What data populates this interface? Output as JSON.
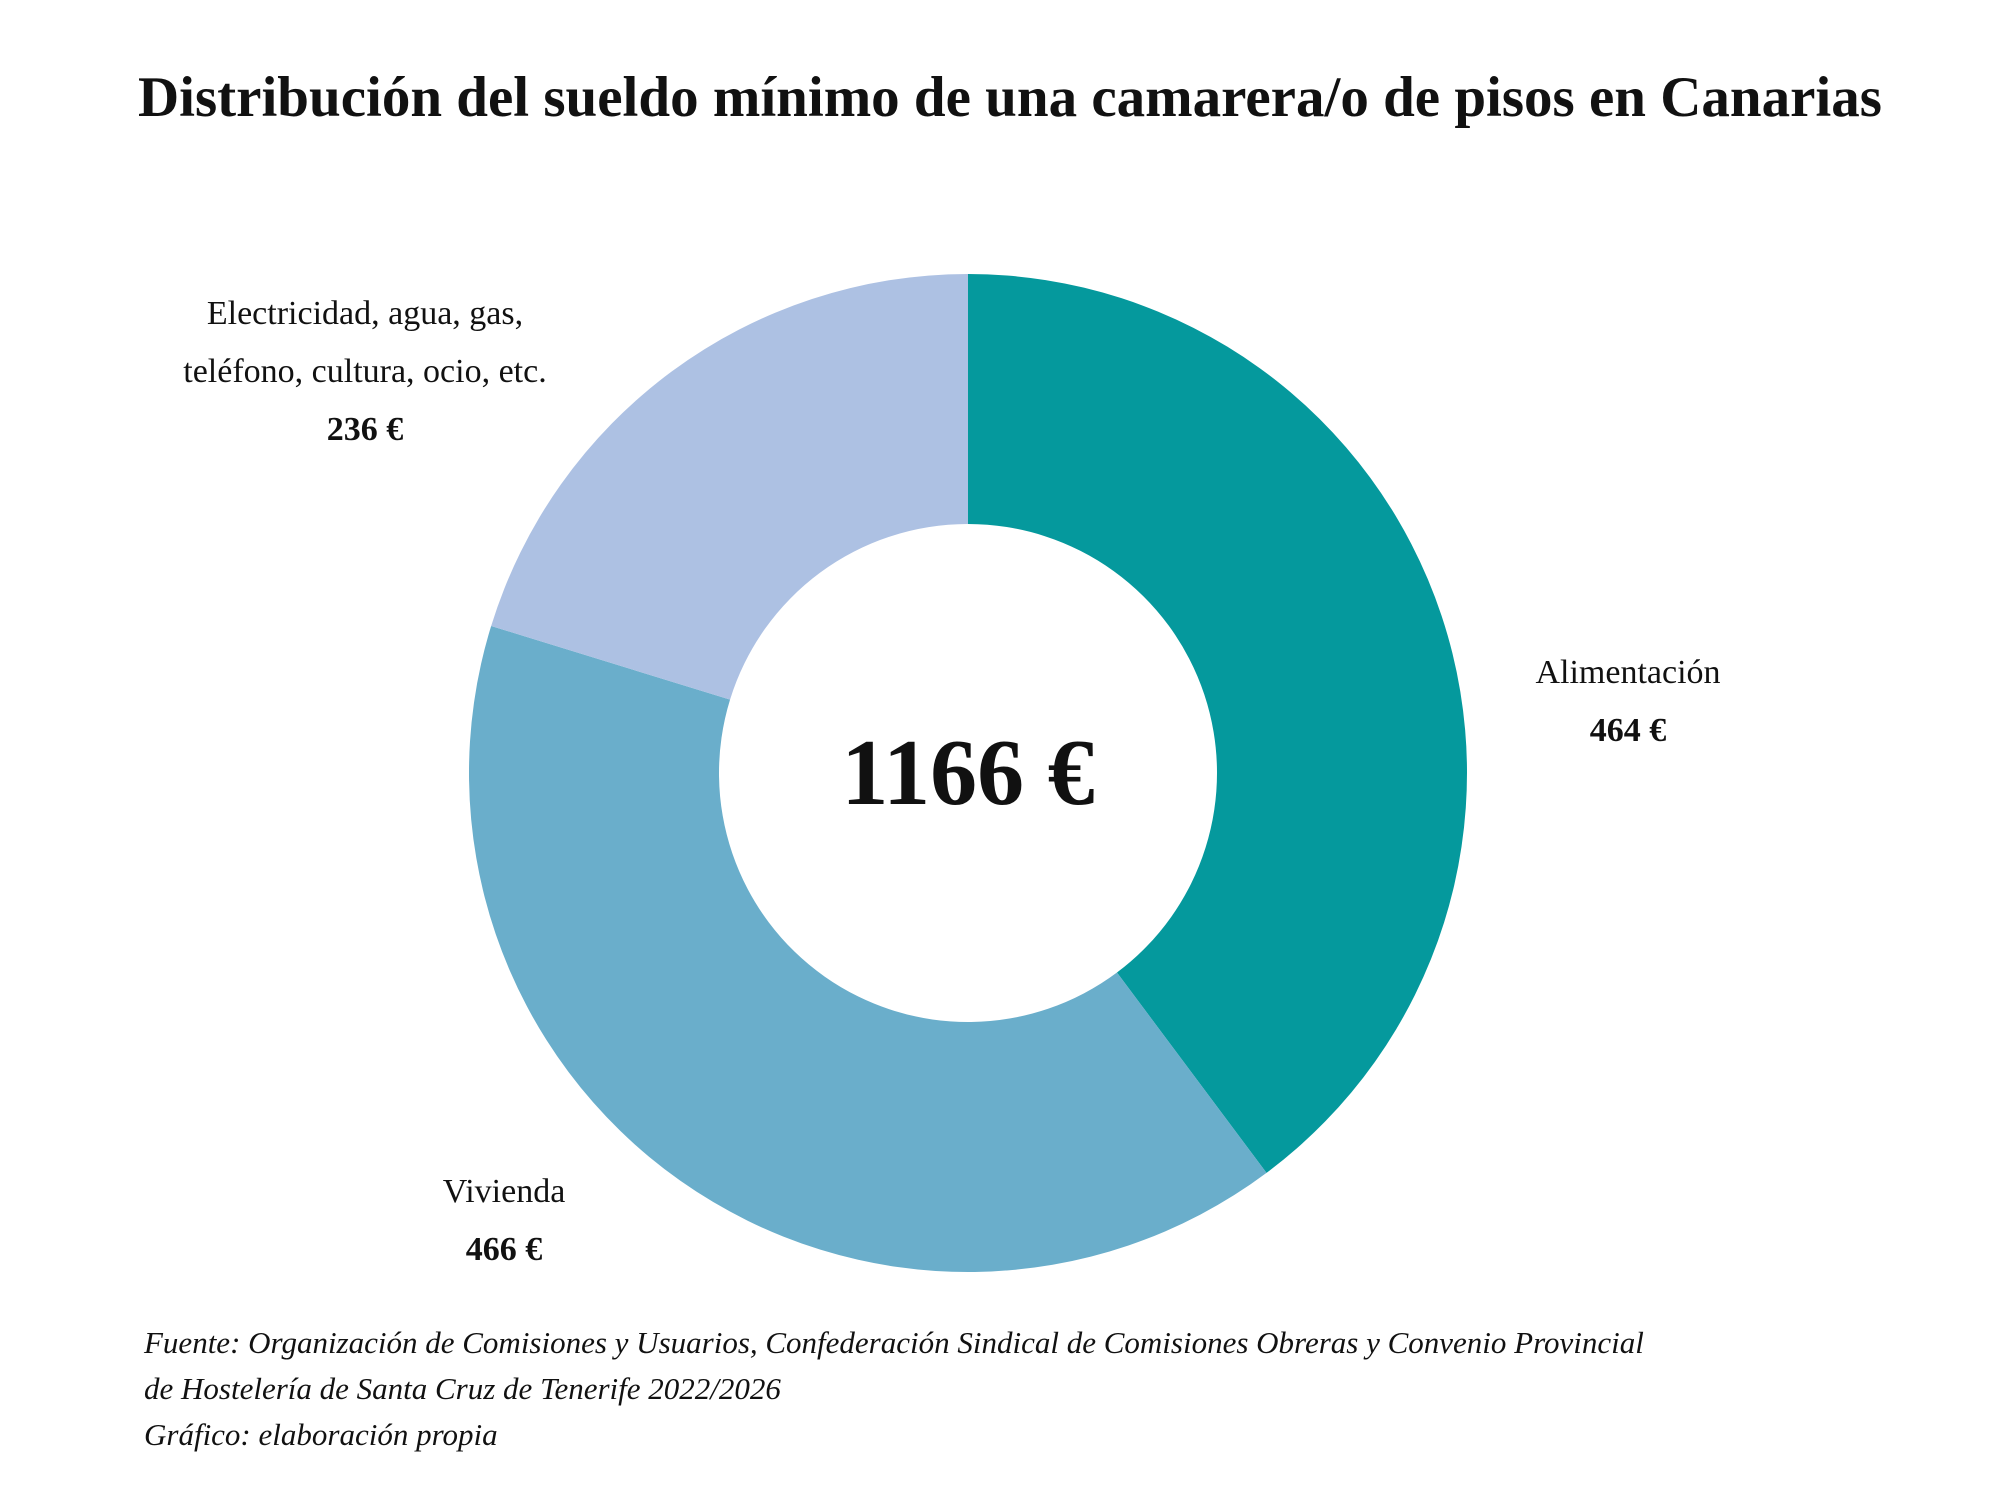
{
  "chart_data": {
    "type": "pie",
    "variant": "donut",
    "title": "Distribución del sueldo mínimo de una camarera/o de pisos en Canarias",
    "total_label": "1166 €",
    "start": "top, clockwise",
    "slices": [
      {
        "label": "Alimentación",
        "value": 464,
        "value_label": "464 €",
        "color": "#05999d"
      },
      {
        "label": "Vivienda",
        "value": 466,
        "value_label": "466 €",
        "color": "#6aaecb"
      },
      {
        "label": "Electricidad, agua, gas, teléfono, cultura, ocio, etc.",
        "label_lines": [
          "Electricidad, agua, gas,",
          "teléfono, cultura, ocio, etc."
        ],
        "value": 236,
        "value_label": "236 €",
        "color": "#adc1e3"
      }
    ]
  },
  "footer": {
    "source_line1": "Fuente: Organización de Comisiones y Usuarios, Confederación Sindical de Comisiones Obreras y Convenio Provincial",
    "source_line2": "de Hostelería de Santa Cruz de Tenerife 2022/2026",
    "credit": "Gráfico: elaboración propia"
  }
}
